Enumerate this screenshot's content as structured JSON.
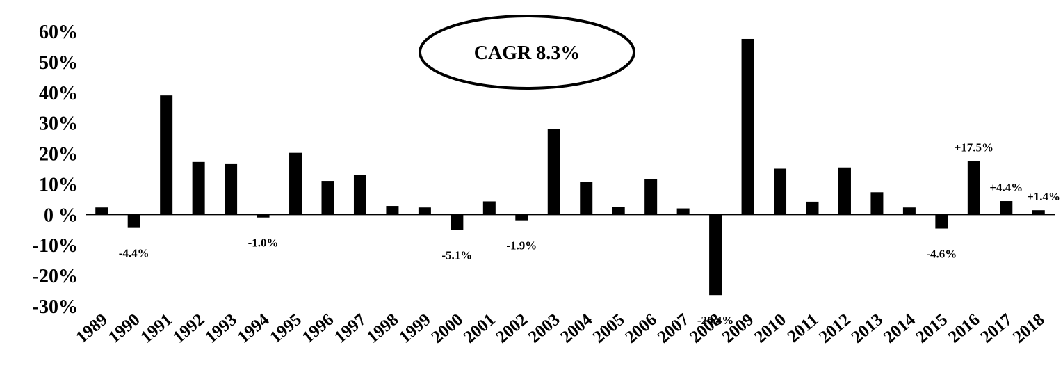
{
  "chart_data": {
    "type": "bar",
    "categories": [
      "1989",
      "1990",
      "1991",
      "1992",
      "1993",
      "1994",
      "1995",
      "1996",
      "1997",
      "1998",
      "1999",
      "2000",
      "2001",
      "2002",
      "2003",
      "2004",
      "2005",
      "2006",
      "2007",
      "2008",
      "2009",
      "2010",
      "2011",
      "2012",
      "2013",
      "2014",
      "2015",
      "2016",
      "2017",
      "2018"
    ],
    "values": [
      2.3,
      -4.4,
      39.0,
      17.2,
      16.5,
      -1.0,
      20.2,
      11.0,
      13.0,
      2.8,
      2.3,
      -5.1,
      4.3,
      -1.9,
      28.0,
      10.7,
      2.5,
      11.5,
      2.0,
      -26.4,
      57.5,
      15.0,
      4.2,
      15.4,
      7.3,
      2.3,
      -4.6,
      17.5,
      4.4,
      1.4
    ],
    "ylim": [
      -30,
      60
    ],
    "yticks": [
      {
        "value": 60,
        "label": "60%"
      },
      {
        "value": 50,
        "label": "50%"
      },
      {
        "value": 40,
        "label": "40%"
      },
      {
        "value": 30,
        "label": "30%"
      },
      {
        "value": 20,
        "label": "20%"
      },
      {
        "value": 10,
        "label": "10%"
      },
      {
        "value": 0,
        "label": "0 %"
      },
      {
        "value": -10,
        "label": "-10%"
      },
      {
        "value": -20,
        "label": "-20%"
      },
      {
        "value": -30,
        "label": "-30%"
      }
    ],
    "data_labels": [
      {
        "category": "1990",
        "text": "-4.4%",
        "placement": "below"
      },
      {
        "category": "1994",
        "text": "-1.0%",
        "placement": "below"
      },
      {
        "category": "2000",
        "text": "-5.1%",
        "placement": "below"
      },
      {
        "category": "2002",
        "text": "-1.9%",
        "placement": "below"
      },
      {
        "category": "2008",
        "text": "-26.4%",
        "placement": "below"
      },
      {
        "category": "2015",
        "text": "-4.6%",
        "placement": "below"
      },
      {
        "category": "2016",
        "text": "+17.5%",
        "placement": "above"
      },
      {
        "category": "2017",
        "text": "+4.4%",
        "placement": "above"
      },
      {
        "category": "2018",
        "text": "+1.4%",
        "placement": "above"
      }
    ],
    "annotation": "CAGR 8.3%",
    "bar_color": "#000000",
    "grid": false,
    "title": "",
    "xlabel": "",
    "ylabel": ""
  }
}
